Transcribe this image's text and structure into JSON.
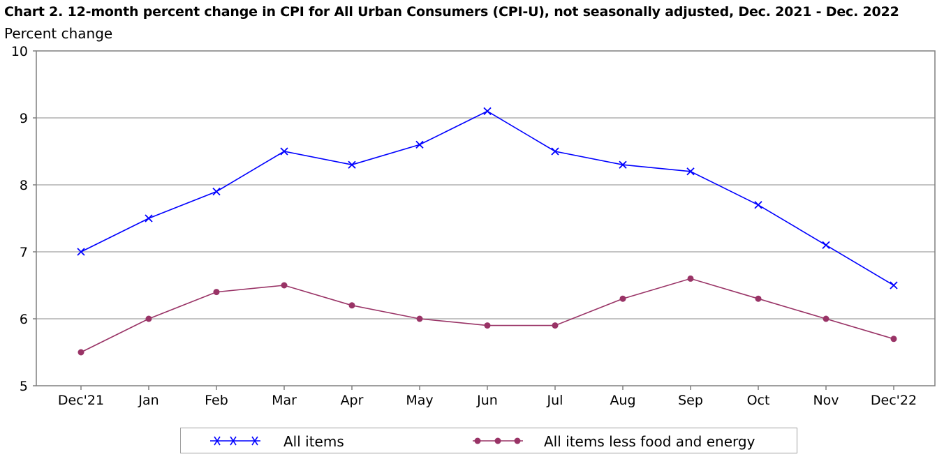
{
  "chart_data": {
    "type": "line",
    "title": "Chart 2. 12-month percent change in CPI for All Urban Consumers (CPI-U), not seasonally adjusted, Dec. 2021 - Dec. 2022",
    "ylabel": "Percent change",
    "xlabel": "",
    "categories": [
      "Dec'21",
      "Jan",
      "Feb",
      "Mar",
      "Apr",
      "May",
      "Jun",
      "Jul",
      "Aug",
      "Sep",
      "Oct",
      "Nov",
      "Dec'22"
    ],
    "ylim": [
      5,
      10
    ],
    "yticks": [
      5,
      6,
      7,
      8,
      9,
      10
    ],
    "grid": "horizontal",
    "legend_position": "bottom",
    "series": [
      {
        "name": "All items",
        "color": "#0000ff",
        "marker": "x",
        "values": [
          7.0,
          7.5,
          7.9,
          8.5,
          8.3,
          8.6,
          9.1,
          8.5,
          8.3,
          8.2,
          7.7,
          7.1,
          6.5
        ]
      },
      {
        "name": "All items less food and energy",
        "color": "#993366",
        "marker": "dot",
        "values": [
          5.5,
          6.0,
          6.4,
          6.5,
          6.2,
          6.0,
          5.9,
          5.9,
          6.3,
          6.6,
          6.3,
          6.0,
          5.7
        ]
      }
    ]
  }
}
